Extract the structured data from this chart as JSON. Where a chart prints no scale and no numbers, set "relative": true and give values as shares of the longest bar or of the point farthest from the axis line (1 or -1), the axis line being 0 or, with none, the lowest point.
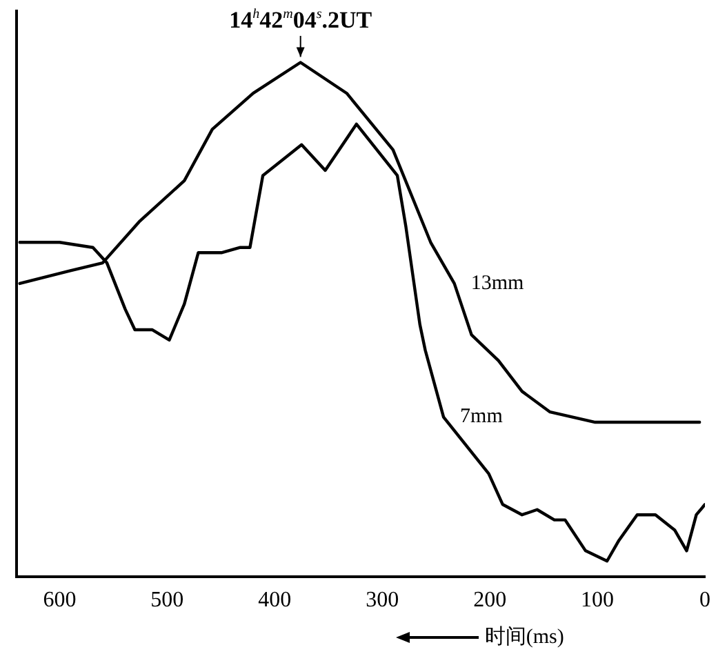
{
  "chart_data": {
    "type": "line",
    "relative": true,
    "xlabel": "时间(ms)",
    "xlim": [
      640,
      0
    ],
    "xticks": [
      600,
      500,
      400,
      300,
      200,
      100,
      0
    ],
    "tick_labels": "x",
    "grid": false,
    "legend": false,
    "marker": "none",
    "line_style": "solid",
    "annotations": [
      {
        "text": "14$^{h}$42$^{m}$04$^{s}$.2UT",
        "x": 376,
        "y": 1.0
      }
    ],
    "series": [
      {
        "name": "13mm",
        "color": "#000000",
        "x": [
          637,
          590,
          560,
          526,
          484,
          458,
          420,
          376,
          333,
          290,
          255,
          233,
          217,
          192,
          170,
          144,
          102,
          54,
          5
        ],
        "values": [
          0.57,
          0.595,
          0.61,
          0.69,
          0.77,
          0.87,
          0.94,
          1.0,
          0.94,
          0.83,
          0.65,
          0.57,
          0.47,
          0.42,
          0.36,
          0.32,
          0.3,
          0.3,
          0.3
        ]
      },
      {
        "name": "7mm",
        "color": "#000000",
        "x": [
          637,
          600,
          569,
          556,
          539,
          530,
          514,
          498,
          484,
          471,
          449,
          432,
          423,
          411,
          375,
          353,
          324,
          286,
          278,
          265,
          260,
          243,
          201,
          188,
          170,
          156,
          140,
          130,
          111,
          91,
          80,
          63,
          46,
          28,
          17,
          8,
          0
        ],
        "values": [
          0.65,
          0.65,
          0.64,
          0.61,
          0.52,
          0.48,
          0.48,
          0.46,
          0.53,
          0.63,
          0.63,
          0.64,
          0.64,
          0.78,
          0.84,
          0.79,
          0.88,
          0.78,
          0.68,
          0.49,
          0.44,
          0.31,
          0.2,
          0.14,
          0.12,
          0.13,
          0.11,
          0.11,
          0.05,
          0.03,
          0.07,
          0.12,
          0.12,
          0.09,
          0.05,
          0.12,
          0.14
        ]
      }
    ]
  }
}
